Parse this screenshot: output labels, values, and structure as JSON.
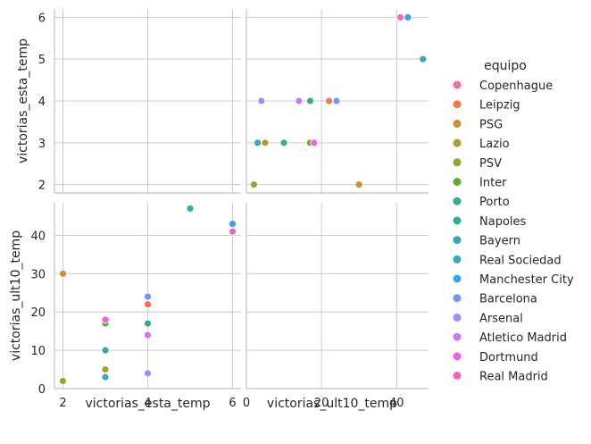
{
  "chart_data": {
    "type": "scatter",
    "kind": "pairplot",
    "variables": [
      "victorias_esta_temp",
      "victorias_ult10_temp"
    ],
    "axis_labels": {
      "victorias_esta_temp": "victorias_esta_temp",
      "victorias_ult10_temp": "victorias_ult10_temp"
    },
    "ranges": {
      "victorias_esta_temp": [
        1.8,
        6.2
      ],
      "victorias_ult10_temp": [
        0,
        48.5
      ]
    },
    "ticks": {
      "victorias_esta_temp_x": [
        2,
        4,
        6
      ],
      "victorias_esta_temp_y": [
        2,
        3,
        4,
        5,
        6
      ],
      "victorias_ult10_temp_x": [
        0,
        20,
        40
      ],
      "victorias_ult10_temp_y": [
        0,
        10,
        20,
        30,
        40
      ]
    },
    "grid": true,
    "legend": {
      "title": "equipo",
      "placement": "right",
      "entries": [
        {
          "name": "Copenhague",
          "color": "#f77189"
        },
        {
          "name": "Leipzig",
          "color": "#f7754f"
        },
        {
          "name": "PSG",
          "color": "#ce8f31"
        },
        {
          "name": "Lazio",
          "color": "#b39a31"
        },
        {
          "name": "PSV",
          "color": "#97a431"
        },
        {
          "name": "Inter",
          "color": "#5fae31"
        },
        {
          "name": "Porto",
          "color": "#33b07a"
        },
        {
          "name": "Napoles",
          "color": "#35ac99"
        },
        {
          "name": "Bayern",
          "color": "#36aaac"
        },
        {
          "name": "Real Sociedad",
          "color": "#38a7bf"
        },
        {
          "name": "Manchester City",
          "color": "#3ba3ec"
        },
        {
          "name": "Barcelona",
          "color": "#6e9af4"
        },
        {
          "name": "Arsenal",
          "color": "#a48cf4"
        },
        {
          "name": "Atletico Madrid",
          "color": "#cc79f4"
        },
        {
          "name": "Dortmund",
          "color": "#f461dd"
        },
        {
          "name": "Real Madrid",
          "color": "#f565bb"
        }
      ]
    },
    "points": [
      {
        "equipo": "Copenhague",
        "victorias_esta_temp": 6,
        "victorias_ult10_temp": 41
      },
      {
        "equipo": "Leipzig",
        "victorias_esta_temp": 4,
        "victorias_ult10_temp": 22
      },
      {
        "equipo": "PSG",
        "victorias_esta_temp": 2,
        "victorias_ult10_temp": 30
      },
      {
        "equipo": "Lazio",
        "victorias_esta_temp": 3,
        "victorias_ult10_temp": 5
      },
      {
        "equipo": "PSV",
        "victorias_esta_temp": 2,
        "victorias_ult10_temp": 2
      },
      {
        "equipo": "Inter",
        "victorias_esta_temp": 3,
        "victorias_ult10_temp": 17
      },
      {
        "equipo": "Porto",
        "victorias_esta_temp": 4,
        "victorias_ult10_temp": 17
      },
      {
        "equipo": "Napoles",
        "victorias_esta_temp": 3,
        "victorias_ult10_temp": 10
      },
      {
        "equipo": "Bayern",
        "victorias_esta_temp": 5,
        "victorias_ult10_temp": 47
      },
      {
        "equipo": "Real Sociedad",
        "victorias_esta_temp": 3,
        "victorias_ult10_temp": 3
      },
      {
        "equipo": "Manchester City",
        "victorias_esta_temp": 6,
        "victorias_ult10_temp": 43
      },
      {
        "equipo": "Barcelona",
        "victorias_esta_temp": 4,
        "victorias_ult10_temp": 24
      },
      {
        "equipo": "Arsenal",
        "victorias_esta_temp": 4,
        "victorias_ult10_temp": 4
      },
      {
        "equipo": "Atletico Madrid",
        "victorias_esta_temp": 4,
        "victorias_ult10_temp": 14
      },
      {
        "equipo": "Dortmund",
        "victorias_esta_temp": 3,
        "victorias_ult10_temp": 18
      },
      {
        "equipo": "Real Madrid",
        "victorias_esta_temp": 6,
        "victorias_ult10_temp": 41
      }
    ]
  }
}
